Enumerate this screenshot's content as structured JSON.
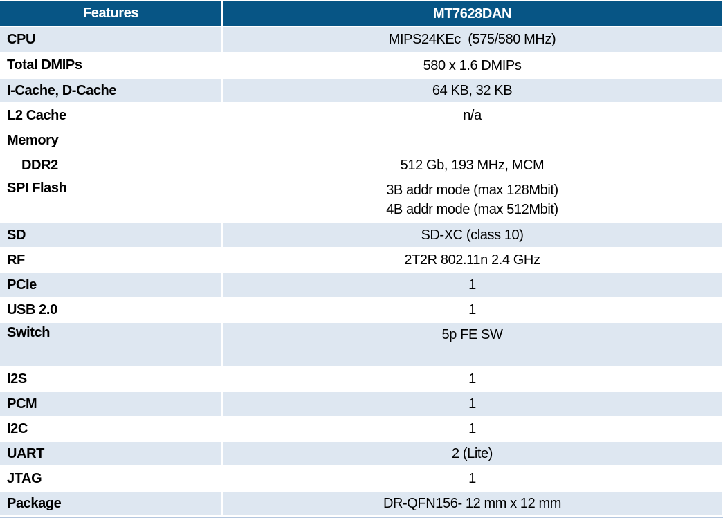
{
  "table": {
    "columns": [
      {
        "label": "Features"
      },
      {
        "label": "MT7628DAN"
      }
    ],
    "rows": [
      {
        "feature": "CPU",
        "value": "MIPS24KEc  (575/580 MHz)"
      },
      {
        "feature": "Total DMIPs",
        "value": "580 x 1.6 DMIPs"
      },
      {
        "feature": "I-Cache, D-Cache",
        "value": "64 KB, 32 KB"
      },
      {
        "feature": "L2 Cache",
        "value": "n/a"
      },
      {
        "feature": "Memory",
        "value": ""
      },
      {
        "feature": "DDR2",
        "value": "512 Gb, 193 MHz, MCM"
      },
      {
        "feature": "SPI Flash",
        "value": "3B addr mode (max 128Mbit)\n4B addr mode (max 512Mbit)"
      },
      {
        "feature": "SD",
        "value": "SD-XC (class 10)"
      },
      {
        "feature": "RF",
        "value": "2T2R 802.11n 2.4 GHz"
      },
      {
        "feature": "PCIe",
        "value": "1"
      },
      {
        "feature": "USB 2.0",
        "value": "1"
      },
      {
        "feature": "Switch",
        "value": "5p FE SW"
      },
      {
        "feature": "I2S",
        "value": "1"
      },
      {
        "feature": "PCM",
        "value": "1"
      },
      {
        "feature": "I2C",
        "value": "1"
      },
      {
        "feature": "UART",
        "value": "2 (Lite)"
      },
      {
        "feature": "JTAG",
        "value": "1"
      },
      {
        "feature": "Package",
        "value": "DR-QFN156- 12 mm x 12 mm"
      }
    ],
    "colors": {
      "header_bg": "#075585",
      "header_text": "#FFFFFF",
      "band_bg": "#DEE7F1",
      "body_text": "#000000",
      "row_divider": "#FFFFFF",
      "ddr2_divider": "#D9D9D9",
      "bottom_strip": "#B3C6DE"
    }
  }
}
